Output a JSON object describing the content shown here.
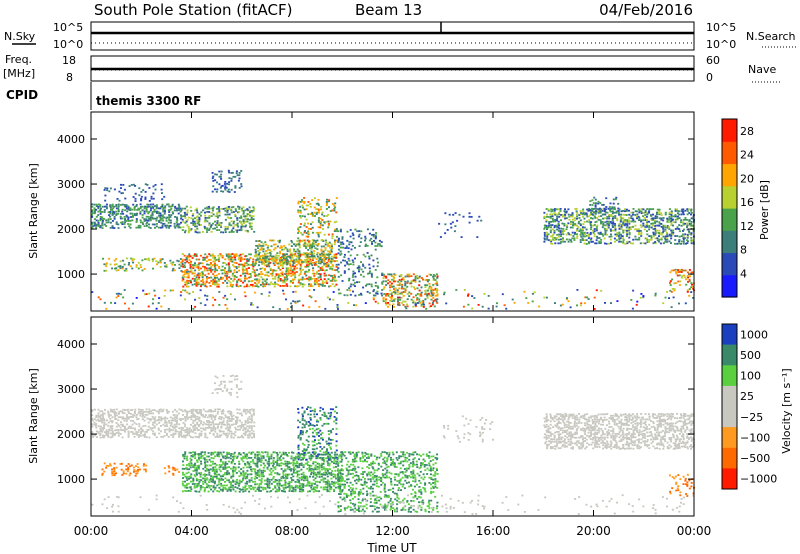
{
  "header": {
    "title": "South Pole Station (fitACF)",
    "beam": "Beam 13",
    "date": "04/Feb/2016"
  },
  "aux": {
    "nsky_label": "N.Sky",
    "nsearch_label": "N.Search",
    "noise_tick_top": "10^5",
    "noise_tick_bottom": "10^0",
    "freq_label_line1": "Freq.",
    "freq_label_line2": "[MHz]",
    "freq_ticks": [
      "18",
      "8"
    ],
    "nave_ticks": [
      "60",
      "0"
    ],
    "nave_label": "Nave",
    "cpid_label": "CPID",
    "cpid_value": "themis 3300 RF"
  },
  "colors": {
    "power_scale": [
      "#1a1aff",
      "#2a4ab8",
      "#3c7f7a",
      "#4aa24a",
      "#b8d030",
      "#ffa500",
      "#ff5a00",
      "#ff1a00"
    ],
    "velocity_scale": [
      "#ff1a00",
      "#ff6a00",
      "#ff9a20",
      "#c8c8c0",
      "#c8c8c0",
      "#5ad040",
      "#3a8a6a",
      "#1a40c0"
    ]
  },
  "chart_data": [
    {
      "type": "heatmap",
      "name": "power",
      "xlabel": "",
      "ylabel": "Slant Range [km]",
      "x_ticks": [
        "00:00",
        "04:00",
        "08:00",
        "12:00",
        "16:00",
        "20:00",
        "00:00"
      ],
      "xlim_hours": [
        0,
        24
      ],
      "ylim_km": [
        180,
        4600
      ],
      "y_ticks": [
        1000,
        2000,
        3000,
        4000
      ],
      "colorbar": {
        "label": "Power [dB]",
        "ticks": [
          4,
          8,
          12,
          16,
          20,
          24,
          28
        ],
        "range": [
          0,
          30
        ]
      },
      "features": [
        {
          "t0": 0.0,
          "t1": 3.6,
          "r0": 2000,
          "r1": 2550,
          "v0": 6,
          "v1": 16,
          "d": 0.55
        },
        {
          "t0": 3.6,
          "t1": 6.5,
          "r0": 1900,
          "r1": 2500,
          "v0": 6,
          "v1": 20,
          "d": 0.45
        },
        {
          "t0": 0.5,
          "t1": 3.0,
          "r0": 2600,
          "r1": 3000,
          "v0": 4,
          "v1": 10,
          "d": 0.18
        },
        {
          "t0": 4.8,
          "t1": 6.0,
          "r0": 2800,
          "r1": 3300,
          "v0": 4,
          "v1": 12,
          "d": 0.3
        },
        {
          "t0": 0.4,
          "t1": 3.6,
          "r0": 1050,
          "r1": 1350,
          "v0": 8,
          "v1": 24,
          "d": 0.3
        },
        {
          "t0": 3.6,
          "t1": 9.8,
          "r0": 700,
          "r1": 1450,
          "v0": 10,
          "v1": 30,
          "d": 0.55
        },
        {
          "t0": 6.5,
          "t1": 9.6,
          "r0": 1200,
          "r1": 1750,
          "v0": 8,
          "v1": 24,
          "d": 0.5
        },
        {
          "t0": 8.2,
          "t1": 9.8,
          "r0": 1600,
          "r1": 2700,
          "v0": 8,
          "v1": 26,
          "d": 0.3
        },
        {
          "t0": 9.8,
          "t1": 11.6,
          "r0": 500,
          "r1": 2000,
          "v0": 4,
          "v1": 16,
          "d": 0.25
        },
        {
          "t0": 11.6,
          "t1": 13.8,
          "r0": 250,
          "r1": 1000,
          "v0": 8,
          "v1": 30,
          "d": 0.45
        },
        {
          "t0": 13.8,
          "t1": 15.8,
          "r0": 1800,
          "r1": 2400,
          "v0": 4,
          "v1": 10,
          "d": 0.08
        },
        {
          "t0": 18.0,
          "t1": 24.0,
          "r0": 1650,
          "r1": 2450,
          "v0": 4,
          "v1": 20,
          "d": 0.55
        },
        {
          "t0": 19.8,
          "t1": 21.0,
          "r0": 2300,
          "r1": 2700,
          "v0": 4,
          "v1": 14,
          "d": 0.35
        },
        {
          "t0": 23.0,
          "t1": 24.0,
          "r0": 600,
          "r1": 1100,
          "v0": 12,
          "v1": 30,
          "d": 0.3
        },
        {
          "t0": 0.0,
          "t1": 24.0,
          "r0": 200,
          "r1": 650,
          "v0": 2,
          "v1": 30,
          "d": 0.06
        }
      ]
    },
    {
      "type": "heatmap",
      "name": "velocity",
      "xlabel": "Time UT",
      "ylabel": "Slant Range [km]",
      "x_ticks": [
        "00:00",
        "04:00",
        "08:00",
        "12:00",
        "16:00",
        "20:00",
        "00:00"
      ],
      "xlim_hours": [
        0,
        24
      ],
      "ylim_km": [
        180,
        4600
      ],
      "y_ticks": [
        1000,
        2000,
        3000,
        4000
      ],
      "colorbar": {
        "label": "Velocity [m s⁻¹]",
        "ticks": [
          "1000",
          "500",
          "100",
          "25",
          "−25",
          "−100",
          "−500",
          "−1000"
        ]
      },
      "features": [
        {
          "t0": 0.0,
          "t1": 6.5,
          "r0": 1900,
          "r1": 2550,
          "v0": 3,
          "v1": 4,
          "d": 0.55
        },
        {
          "t0": 4.8,
          "t1": 6.0,
          "r0": 2800,
          "r1": 3300,
          "v0": 3,
          "v1": 4,
          "d": 0.25
        },
        {
          "t0": 0.4,
          "t1": 2.2,
          "r0": 1050,
          "r1": 1350,
          "v0": 1,
          "v1": 2,
          "d": 0.35
        },
        {
          "t0": 2.8,
          "t1": 3.6,
          "r0": 1050,
          "r1": 1300,
          "v0": 1,
          "v1": 2,
          "d": 0.3
        },
        {
          "t0": 3.6,
          "t1": 10.0,
          "r0": 700,
          "r1": 1600,
          "v0": 5,
          "v1": 6,
          "d": 0.6
        },
        {
          "t0": 8.2,
          "t1": 9.8,
          "r0": 1400,
          "r1": 2600,
          "v0": 5,
          "v1": 7,
          "d": 0.3
        },
        {
          "t0": 9.8,
          "t1": 13.8,
          "r0": 250,
          "r1": 1600,
          "v0": 5,
          "v1": 6,
          "d": 0.35
        },
        {
          "t0": 14.0,
          "t1": 16.0,
          "r0": 1800,
          "r1": 2400,
          "v0": 3,
          "v1": 4,
          "d": 0.1
        },
        {
          "t0": 18.0,
          "t1": 24.0,
          "r0": 1650,
          "r1": 2450,
          "v0": 3,
          "v1": 4,
          "d": 0.6
        },
        {
          "t0": 23.0,
          "t1": 24.0,
          "r0": 600,
          "r1": 1100,
          "v0": 1,
          "v1": 2,
          "d": 0.3
        },
        {
          "t0": 0.0,
          "t1": 24.0,
          "r0": 200,
          "r1": 650,
          "v0": 3,
          "v1": 4,
          "d": 0.05
        }
      ]
    }
  ]
}
